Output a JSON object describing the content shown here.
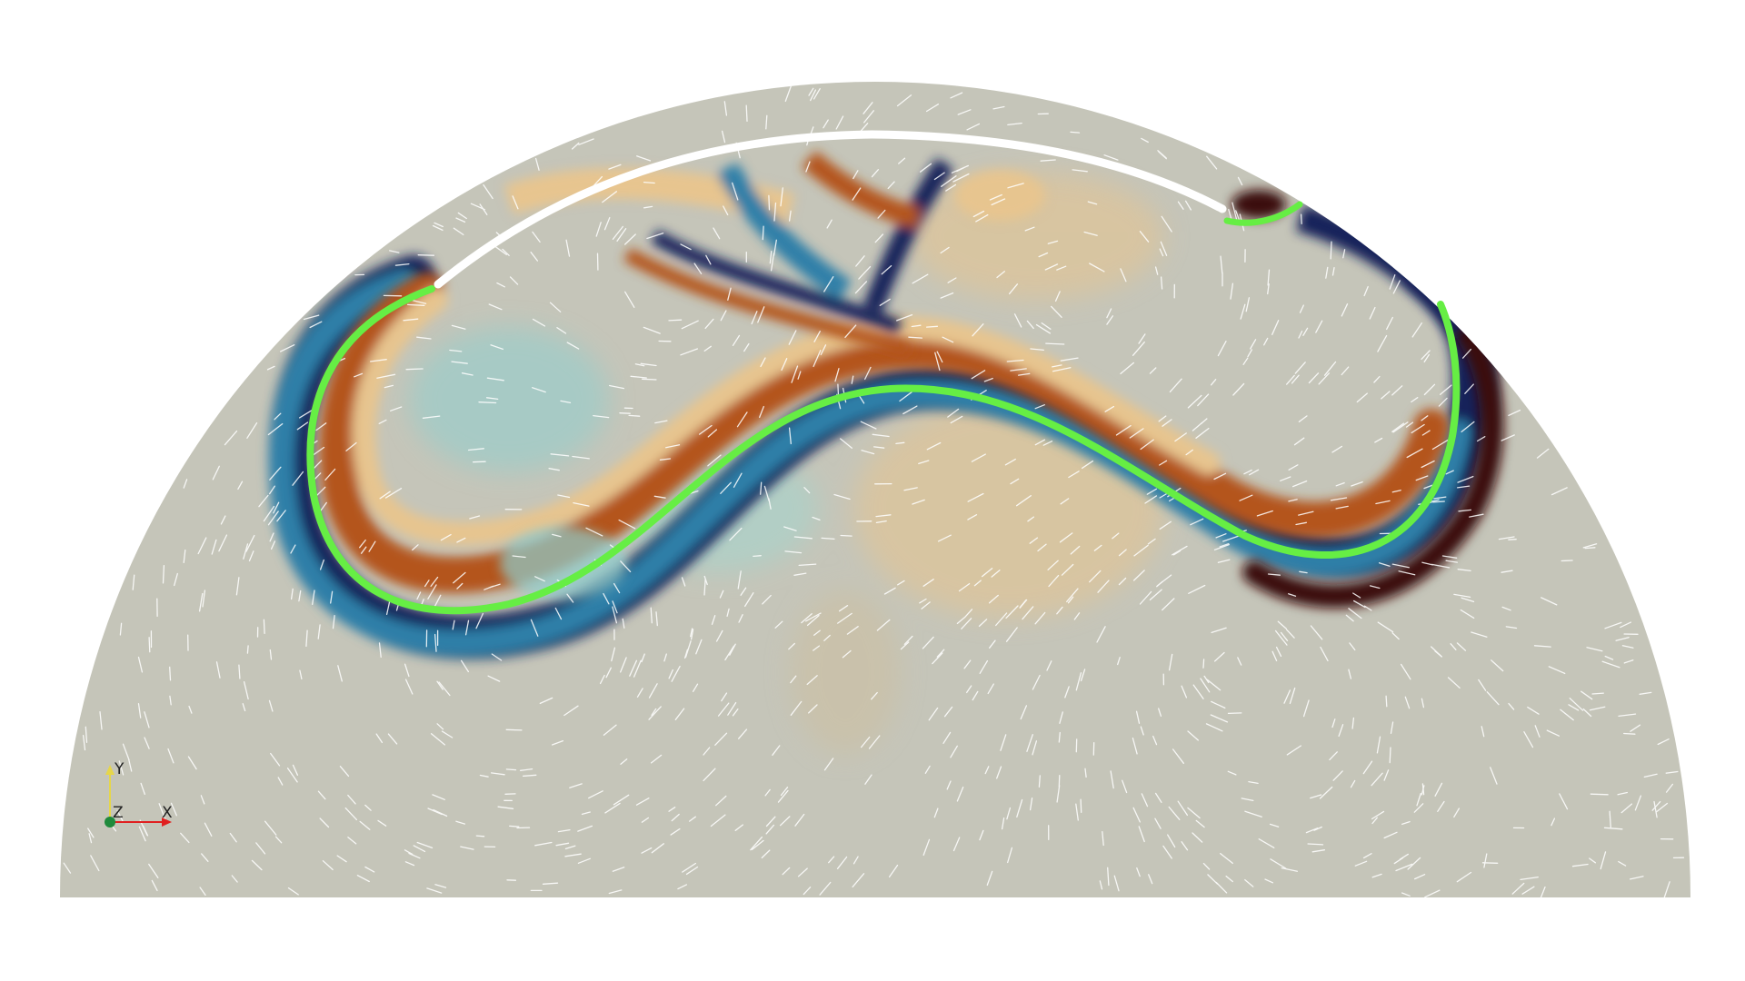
{
  "scene": {
    "colors": {
      "background": "#ffffff",
      "domain_fill": "#c5c5b9",
      "interface_line": "#66ee44",
      "boundary_gap": "#ffffff",
      "streak": "#ffffff",
      "warm_dark": "#3a0d0d",
      "warm_mid": "#b4551f",
      "warm_light": "#e7c58f",
      "cool_dark": "#14205a",
      "cool_mid": "#2f7fa8",
      "cool_light": "#8fcfcf"
    }
  },
  "orientation_axes": {
    "y_label": "Y",
    "z_label": "Z",
    "x_label": "X",
    "colors": {
      "y": "#e6d64a",
      "z": "#1f8a3c",
      "x": "#e02020"
    }
  }
}
